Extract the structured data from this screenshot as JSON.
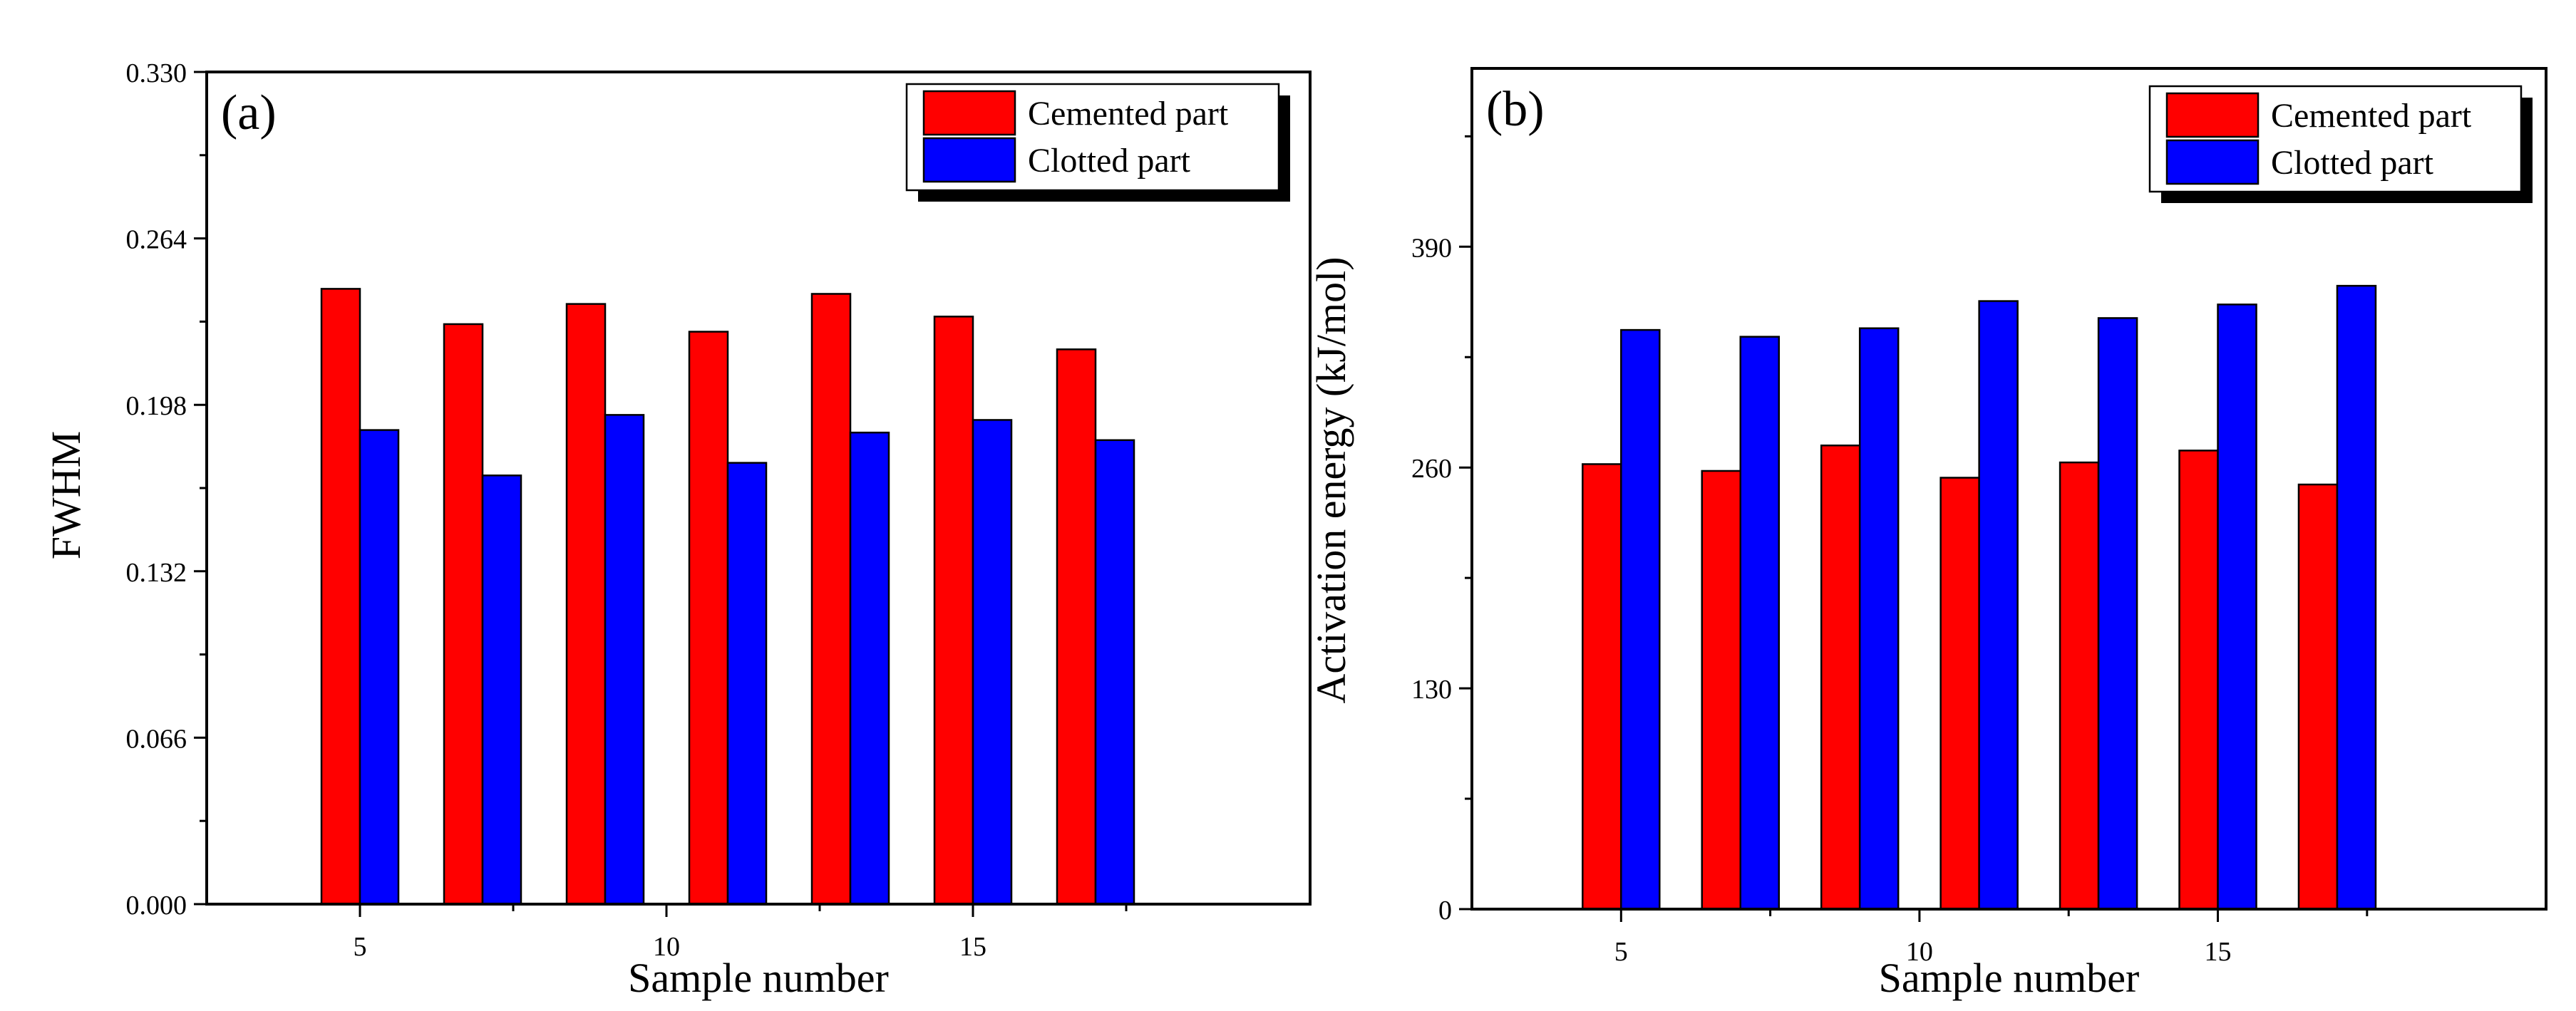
{
  "colors": {
    "cemented": "#ff0000",
    "clotted": "#0000ff",
    "axis": "#000000"
  },
  "chart_data": [
    {
      "type": "bar",
      "panel_label": "(a)",
      "xlabel": "Sample number",
      "ylabel": "FWHM",
      "xlim": [
        2.5,
        20.5
      ],
      "ylim": [
        0,
        0.33
      ],
      "xticks": [
        5,
        10,
        15
      ],
      "xtick_labels": [
        "5",
        "10",
        "15"
      ],
      "yticks": [
        0,
        0.066,
        0.132,
        0.198,
        0.264,
        0.33
      ],
      "ytick_labels": [
        "0.000",
        "0.066",
        "0.132",
        "0.198",
        "0.264",
        "0.330"
      ],
      "categories": [
        5,
        7,
        9,
        11,
        13,
        15,
        17
      ],
      "series": [
        {
          "name": "Cemented part",
          "color": "#ff0000",
          "values": [
            0.244,
            0.23,
            0.238,
            0.227,
            0.242,
            0.233,
            0.22
          ]
        },
        {
          "name": "Clotted part",
          "color": "#0000ff",
          "values": [
            0.188,
            0.17,
            0.194,
            0.175,
            0.187,
            0.192,
            0.184
          ]
        }
      ],
      "legend": {
        "position": "top-right",
        "entries": [
          "Cemented part",
          "Clotted part"
        ]
      }
    },
    {
      "type": "bar",
      "panel_label": "(b)",
      "xlabel": "Sample number",
      "ylabel": "Activation energy (kJ/mol)",
      "xlim": [
        2.5,
        20.5
      ],
      "ylim": [
        0,
        495
      ],
      "xticks": [
        5,
        10,
        15
      ],
      "xtick_labels": [
        "5",
        "10",
        "15"
      ],
      "yticks": [
        0,
        130,
        260,
        390
      ],
      "ytick_labels": [
        "0",
        "130",
        "260",
        "390"
      ],
      "categories": [
        5,
        7,
        9,
        11,
        13,
        15,
        17
      ],
      "series": [
        {
          "name": "Cemented part",
          "color": "#ff0000",
          "values": [
            262,
            258,
            273,
            254,
            263,
            270,
            250
          ]
        },
        {
          "name": "Clotted part",
          "color": "#0000ff",
          "values": [
            341,
            337,
            342,
            358,
            348,
            356,
            367
          ]
        }
      ],
      "legend": {
        "position": "top-right",
        "entries": [
          "Cemented part",
          "Clotted part"
        ]
      }
    }
  ]
}
